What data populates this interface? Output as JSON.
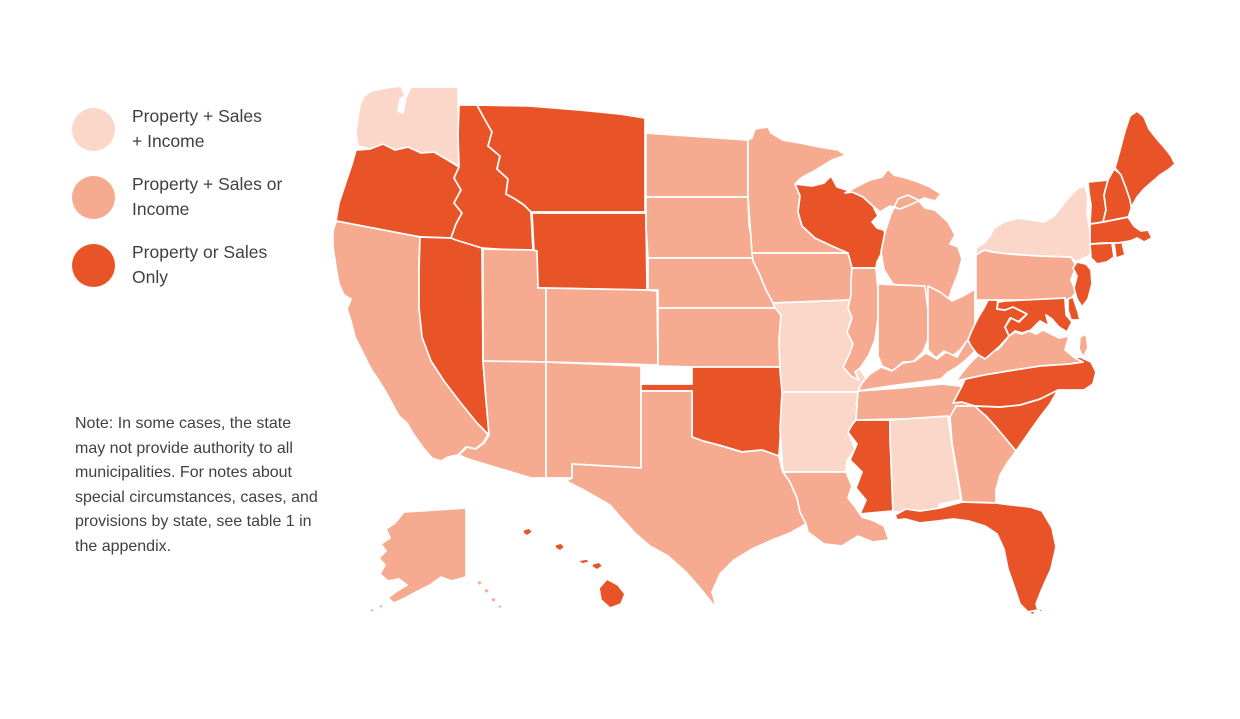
{
  "page": {
    "background": "#ffffff"
  },
  "legend": {
    "items": [
      {
        "category": "property_sales_income",
        "label_line1": "Property + Sales",
        "label_line2": "+ Income",
        "color": "#fad7c8"
      },
      {
        "category": "property_sales_or_income",
        "label_line1": "Property + Sales or",
        "label_line2": "Income",
        "color": "#f6aa90"
      },
      {
        "category": "property_or_sales_only",
        "label_line1": "Property or Sales",
        "label_line2": "Only",
        "color": "#e85427"
      }
    ]
  },
  "note": {
    "text": "Note: In some cases, the state\nmay not provide authority to all\nmunicipalities. For notes about\nspecial circumstances, cases, and\nprovisions by state, see table 1 in\nthe appendix."
  },
  "map_data": {
    "type": "choropleth",
    "region": "United States",
    "border_color": "#ffffff",
    "states": [
      {
        "id": "WA",
        "name": "Washington",
        "category": "property_sales_income"
      },
      {
        "id": "OR",
        "name": "Oregon",
        "category": "property_or_sales_only"
      },
      {
        "id": "CA",
        "name": "California",
        "category": "property_sales_or_income"
      },
      {
        "id": "NV",
        "name": "Nevada",
        "category": "property_or_sales_only"
      },
      {
        "id": "ID",
        "name": "Idaho",
        "category": "property_or_sales_only"
      },
      {
        "id": "MT",
        "name": "Montana",
        "category": "property_or_sales_only"
      },
      {
        "id": "WY",
        "name": "Wyoming",
        "category": "property_or_sales_only"
      },
      {
        "id": "UT",
        "name": "Utah",
        "category": "property_sales_or_income"
      },
      {
        "id": "AZ",
        "name": "Arizona",
        "category": "property_sales_or_income"
      },
      {
        "id": "NM",
        "name": "New Mexico",
        "category": "property_sales_or_income"
      },
      {
        "id": "CO",
        "name": "Colorado",
        "category": "property_sales_or_income"
      },
      {
        "id": "ND",
        "name": "North Dakota",
        "category": "property_sales_or_income"
      },
      {
        "id": "SD",
        "name": "South Dakota",
        "category": "property_sales_or_income"
      },
      {
        "id": "NE",
        "name": "Nebraska",
        "category": "property_sales_or_income"
      },
      {
        "id": "KS",
        "name": "Kansas",
        "category": "property_sales_or_income"
      },
      {
        "id": "OK",
        "name": "Oklahoma",
        "category": "property_or_sales_only"
      },
      {
        "id": "TX",
        "name": "Texas",
        "category": "property_sales_or_income"
      },
      {
        "id": "MN",
        "name": "Minnesota",
        "category": "property_sales_or_income"
      },
      {
        "id": "IA",
        "name": "Iowa",
        "category": "property_sales_or_income"
      },
      {
        "id": "MO",
        "name": "Missouri",
        "category": "property_sales_income"
      },
      {
        "id": "AR",
        "name": "Arkansas",
        "category": "property_sales_income"
      },
      {
        "id": "LA",
        "name": "Louisiana",
        "category": "property_sales_or_income"
      },
      {
        "id": "WI",
        "name": "Wisconsin",
        "category": "property_or_sales_only"
      },
      {
        "id": "IL",
        "name": "Illinois",
        "category": "property_sales_or_income"
      },
      {
        "id": "MS",
        "name": "Mississippi",
        "category": "property_or_sales_only"
      },
      {
        "id": "MI",
        "name": "Michigan",
        "category": "property_sales_or_income"
      },
      {
        "id": "IN",
        "name": "Indiana",
        "category": "property_sales_or_income"
      },
      {
        "id": "OH",
        "name": "Ohio",
        "category": "property_sales_or_income"
      },
      {
        "id": "KY",
        "name": "Kentucky",
        "category": "property_sales_or_income"
      },
      {
        "id": "TN",
        "name": "Tennessee",
        "category": "property_sales_or_income"
      },
      {
        "id": "AL",
        "name": "Alabama",
        "category": "property_sales_income"
      },
      {
        "id": "GA",
        "name": "Georgia",
        "category": "property_sales_or_income"
      },
      {
        "id": "FL",
        "name": "Florida",
        "category": "property_or_sales_only"
      },
      {
        "id": "SC",
        "name": "South Carolina",
        "category": "property_or_sales_only"
      },
      {
        "id": "NC",
        "name": "North Carolina",
        "category": "property_or_sales_only"
      },
      {
        "id": "VA",
        "name": "Virginia",
        "category": "property_sales_or_income"
      },
      {
        "id": "WV",
        "name": "West Virginia",
        "category": "property_or_sales_only"
      },
      {
        "id": "PA",
        "name": "Pennsylvania",
        "category": "property_sales_or_income"
      },
      {
        "id": "NY",
        "name": "New York",
        "category": "property_sales_income"
      },
      {
        "id": "MD",
        "name": "Maryland",
        "category": "property_or_sales_only"
      },
      {
        "id": "DE",
        "name": "Delaware",
        "category": "property_or_sales_only"
      },
      {
        "id": "NJ",
        "name": "New Jersey",
        "category": "property_or_sales_only"
      },
      {
        "id": "CT",
        "name": "Connecticut",
        "category": "property_or_sales_only"
      },
      {
        "id": "RI",
        "name": "Rhode Island",
        "category": "property_or_sales_only"
      },
      {
        "id": "MA",
        "name": "Massachusetts",
        "category": "property_or_sales_only"
      },
      {
        "id": "VT",
        "name": "Vermont",
        "category": "property_or_sales_only"
      },
      {
        "id": "NH",
        "name": "New Hampshire",
        "category": "property_or_sales_only"
      },
      {
        "id": "ME",
        "name": "Maine",
        "category": "property_or_sales_only"
      },
      {
        "id": "AK",
        "name": "Alaska",
        "category": "property_sales_or_income"
      },
      {
        "id": "HI",
        "name": "Hawaii",
        "category": "property_or_sales_only"
      }
    ]
  }
}
